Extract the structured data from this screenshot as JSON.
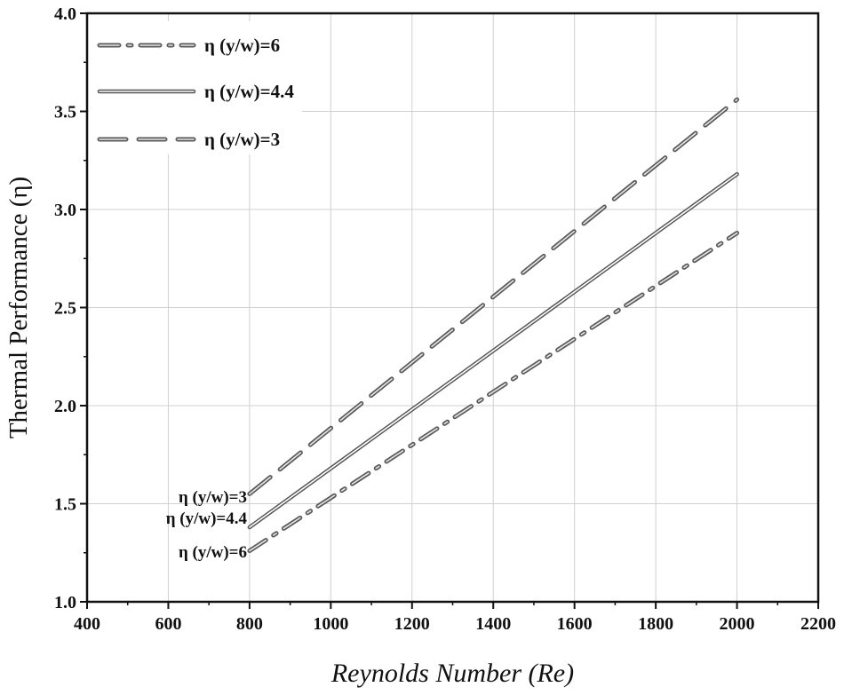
{
  "chart_data": {
    "type": "line",
    "title": "",
    "xlabel": "Reynolds Number (Re)",
    "ylabel": "Thermal Performance (η)",
    "xlim": [
      400,
      2200
    ],
    "ylim": [
      1.0,
      4.0
    ],
    "xticks": [
      "400",
      "600",
      "800",
      "1000",
      "1200",
      "1400",
      "1600",
      "1800",
      "2000",
      "2200"
    ],
    "yticks": [
      "1.0",
      "1.5",
      "2.0",
      "2.5",
      "3.0",
      "3.5",
      "4.0"
    ],
    "grid": true,
    "legend_position": "top-left",
    "series": [
      {
        "name": "η (y/w)=6",
        "style": "dash-dot",
        "color": "#5a5a5a",
        "x": [
          800,
          2000
        ],
        "y": [
          1.26,
          2.88
        ]
      },
      {
        "name": "η (y/w)=4.4",
        "style": "double-solid",
        "color": "#555555",
        "x": [
          800,
          2000
        ],
        "y": [
          1.38,
          3.18
        ]
      },
      {
        "name": "η (y/w)=3",
        "style": "dashed",
        "color": "#5a5a5a",
        "x": [
          800,
          2000
        ],
        "y": [
          1.55,
          3.56
        ]
      }
    ],
    "annotations": [
      {
        "text": "η (y/w)=3",
        "series": 2
      },
      {
        "text": "η (y/w)=4.4",
        "series": 1
      },
      {
        "text": "η (y/w)=6",
        "series": 0
      }
    ]
  }
}
